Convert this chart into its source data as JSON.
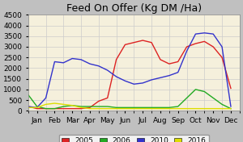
{
  "title": "Feed On Offer (Kg DM /Ha)",
  "ylim": [
    0,
    4500
  ],
  "yticks": [
    0,
    500,
    1000,
    1500,
    2000,
    2500,
    3000,
    3500,
    4000,
    4500
  ],
  "months": [
    "Jan",
    "Feb",
    "Mar",
    "Apr",
    "May",
    "Jun",
    "Jul",
    "Aug",
    "Sep",
    "Oct",
    "Nov",
    "Dec"
  ],
  "background_color": "#f5f0dc",
  "grid_color": "#cccccc",
  "series": {
    "2005": {
      "color": "#dd2222",
      "values": [
        200,
        100,
        100,
        100,
        100,
        100,
        100,
        150,
        450,
        600,
        2400,
        3100,
        3200,
        3300,
        3200,
        2400,
        2200,
        2300,
        3000,
        3150,
        3250,
        3000,
        2500,
        1050
      ]
    },
    "2006": {
      "color": "#22aa22",
      "values": [
        750,
        200,
        100,
        100,
        200,
        250,
        200,
        200,
        200,
        200,
        150,
        150,
        150,
        150,
        150,
        150,
        150,
        200,
        600,
        1000,
        900,
        600,
        300,
        100
      ]
    },
    "2010": {
      "color": "#3333cc",
      "values": [
        200,
        150,
        600,
        2300,
        2250,
        2450,
        2400,
        2200,
        2100,
        1900,
        1600,
        1400,
        1250,
        1300,
        1450,
        1550,
        1650,
        1800,
        2800,
        3600,
        3650,
        3600,
        3000,
        200
      ]
    },
    "2016": {
      "color": "#dddd00",
      "values": [
        150,
        150,
        300,
        350,
        300,
        250,
        150,
        100,
        100,
        100,
        100,
        100,
        100,
        100,
        100,
        100,
        100,
        100,
        100,
        100,
        100,
        100,
        100,
        100
      ]
    }
  },
  "legend_order": [
    "2005",
    "2006",
    "2010",
    "2016"
  ],
  "title_fontsize": 9,
  "tick_fontsize": 6.5,
  "legend_fontsize": 6.5
}
